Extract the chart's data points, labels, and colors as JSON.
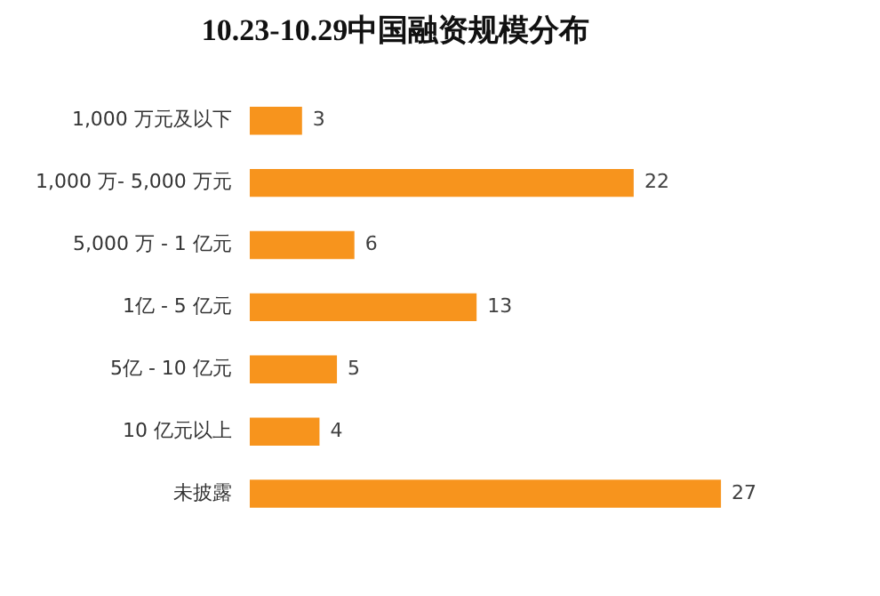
{
  "chart_data": {
    "type": "bar",
    "orientation": "horizontal",
    "title": "10.23-10.29中国融资规模分布",
    "categories": [
      "1,000 万元及以下",
      "1,000 万- 5,000 万元",
      "5,000 万 - 1 亿元",
      "1亿 - 5 亿元",
      "5亿 - 10 亿元",
      "10 亿元以上",
      "未披露"
    ],
    "values": [
      3,
      22,
      6,
      13,
      5,
      4,
      27
    ],
    "color": "#f7941d",
    "data_labels": true,
    "grid": false,
    "legend": false
  }
}
